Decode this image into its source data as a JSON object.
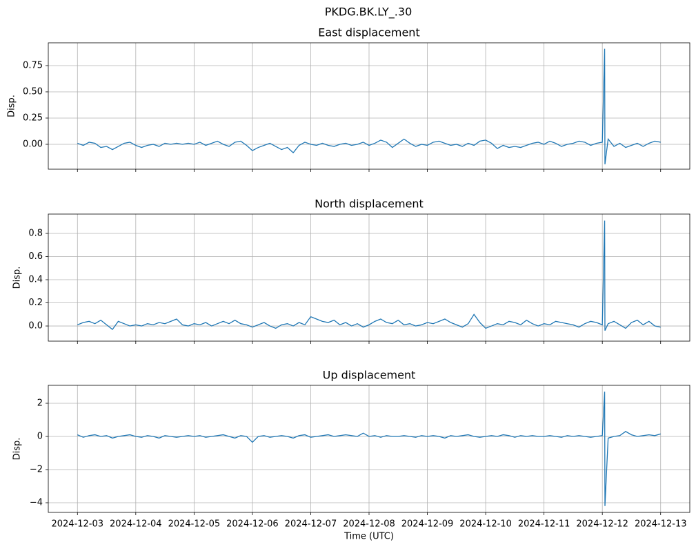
{
  "title": "PKDG.BK.LY_.30",
  "chart_data": [
    {
      "type": "line",
      "title": "East displacement",
      "ylabel": "Disp.",
      "grid": true,
      "xlim": [
        -0.5,
        10.5
      ],
      "ylim": [
        -0.237,
        0.967
      ],
      "yticks": [
        {
          "value": 0,
          "label": "0.00"
        },
        {
          "value": 0.25,
          "label": "0.25"
        },
        {
          "value": 0.5,
          "label": "0.50"
        },
        {
          "value": 0.75,
          "label": "0.75"
        }
      ],
      "x": [
        0,
        0.1,
        0.2,
        0.3,
        0.4,
        0.5,
        0.6,
        0.7,
        0.8,
        0.9,
        1,
        1.1,
        1.2,
        1.3,
        1.4,
        1.5,
        1.6,
        1.7,
        1.8,
        1.9,
        2,
        2.1,
        2.2,
        2.3,
        2.4,
        2.5,
        2.6,
        2.7,
        2.8,
        2.9,
        3,
        3.1,
        3.2,
        3.3,
        3.4,
        3.5,
        3.6,
        3.7,
        3.8,
        3.9,
        4,
        4.1,
        4.2,
        4.3,
        4.4,
        4.5,
        4.6,
        4.7,
        4.8,
        4.9,
        5,
        5.1,
        5.2,
        5.3,
        5.4,
        5.5,
        5.6,
        5.7,
        5.8,
        5.9,
        6,
        6.1,
        6.2,
        6.3,
        6.4,
        6.5,
        6.6,
        6.7,
        6.8,
        6.9,
        7,
        7.1,
        7.2,
        7.3,
        7.4,
        7.5,
        7.6,
        7.7,
        7.8,
        7.9,
        8,
        8.1,
        8.2,
        8.3,
        8.4,
        8.5,
        8.6,
        8.7,
        8.8,
        8.9,
        9,
        9.04,
        9.045,
        9.1,
        9.2,
        9.3,
        9.4,
        9.5,
        9.6,
        9.7,
        9.8,
        9.9,
        10
      ],
      "series": [
        {
          "name": "East",
          "color": "#1f77b4",
          "values": [
            0.01,
            -0.01,
            0.02,
            0.01,
            -0.03,
            -0.02,
            -0.05,
            -0.02,
            0.01,
            0.02,
            -0.01,
            -0.03,
            -0.01,
            0.0,
            -0.02,
            0.01,
            0.0,
            0.01,
            0.0,
            0.01,
            0.0,
            0.02,
            -0.01,
            0.01,
            0.03,
            0.0,
            -0.02,
            0.02,
            0.03,
            -0.01,
            -0.06,
            -0.03,
            -0.01,
            0.01,
            -0.02,
            -0.05,
            -0.03,
            -0.08,
            -0.01,
            0.02,
            0.0,
            -0.01,
            0.01,
            -0.01,
            -0.02,
            0.0,
            0.01,
            -0.01,
            0.0,
            0.02,
            -0.01,
            0.01,
            0.04,
            0.02,
            -0.03,
            0.01,
            0.05,
            0.01,
            -0.02,
            0.0,
            -0.01,
            0.02,
            0.03,
            0.01,
            -0.01,
            0.0,
            -0.02,
            0.01,
            -0.01,
            0.03,
            0.04,
            0.01,
            -0.04,
            -0.01,
            -0.03,
            -0.02,
            -0.03,
            -0.01,
            0.01,
            0.02,
            0.0,
            0.03,
            0.01,
            -0.02,
            0.0,
            0.01,
            0.03,
            0.02,
            -0.01,
            0.01,
            0.02,
            0.91,
            -0.19,
            0.05,
            -0.02,
            0.01,
            -0.03,
            -0.01,
            0.01,
            -0.02,
            0.01,
            0.03,
            0.02
          ]
        }
      ]
    },
    {
      "type": "line",
      "title": "North displacement",
      "ylabel": "Disp.",
      "grid": true,
      "xlim": [
        -0.5,
        10.5
      ],
      "ylim": [
        -0.131,
        0.967
      ],
      "yticks": [
        {
          "value": 0,
          "label": "0.0"
        },
        {
          "value": 0.2,
          "label": "0.2"
        },
        {
          "value": 0.4,
          "label": "0.4"
        },
        {
          "value": 0.6,
          "label": "0.6"
        },
        {
          "value": 0.8,
          "label": "0.8"
        }
      ],
      "x": [
        0,
        0.1,
        0.2,
        0.3,
        0.4,
        0.5,
        0.6,
        0.7,
        0.8,
        0.9,
        1,
        1.1,
        1.2,
        1.3,
        1.4,
        1.5,
        1.6,
        1.7,
        1.8,
        1.9,
        2,
        2.1,
        2.2,
        2.3,
        2.4,
        2.5,
        2.6,
        2.7,
        2.8,
        2.9,
        3,
        3.1,
        3.2,
        3.3,
        3.4,
        3.5,
        3.6,
        3.7,
        3.8,
        3.9,
        4,
        4.1,
        4.2,
        4.3,
        4.4,
        4.5,
        4.6,
        4.7,
        4.8,
        4.9,
        5,
        5.1,
        5.2,
        5.3,
        5.4,
        5.5,
        5.6,
        5.7,
        5.8,
        5.9,
        6,
        6.1,
        6.2,
        6.3,
        6.4,
        6.5,
        6.6,
        6.7,
        6.8,
        6.9,
        7,
        7.1,
        7.2,
        7.3,
        7.4,
        7.5,
        7.6,
        7.7,
        7.8,
        7.9,
        8,
        8.1,
        8.2,
        8.3,
        8.4,
        8.5,
        8.6,
        8.7,
        8.8,
        8.9,
        9,
        9.04,
        9.045,
        9.1,
        9.2,
        9.3,
        9.4,
        9.5,
        9.6,
        9.7,
        9.8,
        9.9,
        10
      ],
      "series": [
        {
          "name": "North",
          "color": "#1f77b4",
          "values": [
            0.01,
            0.03,
            0.04,
            0.02,
            0.05,
            0.01,
            -0.03,
            0.04,
            0.02,
            0.0,
            0.01,
            0.0,
            0.02,
            0.01,
            0.03,
            0.02,
            0.04,
            0.06,
            0.01,
            0.0,
            0.02,
            0.01,
            0.03,
            0.0,
            0.02,
            0.04,
            0.02,
            0.05,
            0.02,
            0.01,
            -0.01,
            0.01,
            0.03,
            0.0,
            -0.02,
            0.01,
            0.02,
            0.0,
            0.03,
            0.01,
            0.08,
            0.06,
            0.04,
            0.03,
            0.05,
            0.01,
            0.03,
            0.0,
            0.02,
            -0.01,
            0.01,
            0.04,
            0.06,
            0.03,
            0.02,
            0.05,
            0.01,
            0.02,
            0.0,
            0.01,
            0.03,
            0.02,
            0.04,
            0.06,
            0.03,
            0.01,
            -0.01,
            0.02,
            0.1,
            0.03,
            -0.02,
            0.0,
            0.02,
            0.01,
            0.04,
            0.03,
            0.01,
            0.05,
            0.02,
            0.0,
            0.02,
            0.01,
            0.04,
            0.03,
            0.02,
            0.01,
            -0.01,
            0.02,
            0.04,
            0.03,
            0.01,
            0.91,
            -0.04,
            0.02,
            0.04,
            0.01,
            -0.02,
            0.03,
            0.05,
            0.01,
            0.04,
            0.0,
            -0.01
          ]
        }
      ]
    },
    {
      "type": "line",
      "title": "Up displacement",
      "ylabel": "Disp.",
      "xlabel": "Time (UTC)",
      "grid": true,
      "xlim": [
        -0.5,
        10.5
      ],
      "ylim": [
        -4.583,
        3.083
      ],
      "xticks": [
        {
          "value": 0,
          "label": "2024-12-03"
        },
        {
          "value": 1,
          "label": "2024-12-04"
        },
        {
          "value": 2,
          "label": "2024-12-05"
        },
        {
          "value": 3,
          "label": "2024-12-06"
        },
        {
          "value": 4,
          "label": "2024-12-07"
        },
        {
          "value": 5,
          "label": "2024-12-08"
        },
        {
          "value": 6,
          "label": "2024-12-09"
        },
        {
          "value": 7,
          "label": "2024-12-10"
        },
        {
          "value": 8,
          "label": "2024-12-11"
        },
        {
          "value": 9,
          "label": "2024-12-12"
        },
        {
          "value": 10,
          "label": "2024-12-13"
        }
      ],
      "yticks": [
        {
          "value": -4,
          "label": "−4"
        },
        {
          "value": -2,
          "label": "−2"
        },
        0,
        2
      ],
      "x": [
        0,
        0.1,
        0.2,
        0.3,
        0.4,
        0.5,
        0.6,
        0.7,
        0.8,
        0.9,
        1,
        1.1,
        1.2,
        1.3,
        1.4,
        1.5,
        1.6,
        1.7,
        1.8,
        1.9,
        2,
        2.1,
        2.2,
        2.3,
        2.4,
        2.5,
        2.6,
        2.7,
        2.8,
        2.9,
        3,
        3.1,
        3.2,
        3.3,
        3.4,
        3.5,
        3.6,
        3.7,
        3.8,
        3.9,
        4,
        4.1,
        4.2,
        4.3,
        4.4,
        4.5,
        4.6,
        4.7,
        4.8,
        4.9,
        5,
        5.1,
        5.2,
        5.3,
        5.4,
        5.5,
        5.6,
        5.7,
        5.8,
        5.9,
        6,
        6.1,
        6.2,
        6.3,
        6.4,
        6.5,
        6.6,
        6.7,
        6.8,
        6.9,
        7,
        7.1,
        7.2,
        7.3,
        7.4,
        7.5,
        7.6,
        7.7,
        7.8,
        7.9,
        8,
        8.1,
        8.2,
        8.3,
        8.4,
        8.5,
        8.6,
        8.7,
        8.8,
        8.9,
        9,
        9.04,
        9.045,
        9.1,
        9.2,
        9.3,
        9.4,
        9.5,
        9.6,
        9.7,
        9.8,
        9.9,
        10
      ],
      "series": [
        {
          "name": "Up",
          "color": "#1f77b4",
          "values": [
            0.1,
            -0.05,
            0.05,
            0.1,
            0.0,
            0.05,
            -0.1,
            0.0,
            0.05,
            0.1,
            0.0,
            -0.05,
            0.05,
            0.0,
            -0.1,
            0.05,
            0.0,
            -0.05,
            0.0,
            0.05,
            0.0,
            0.05,
            -0.05,
            0.0,
            0.05,
            0.1,
            0.0,
            -0.1,
            0.05,
            0.0,
            -0.35,
            0.0,
            0.05,
            -0.05,
            0.0,
            0.05,
            0.0,
            -0.1,
            0.05,
            0.1,
            -0.05,
            0.0,
            0.05,
            0.1,
            0.0,
            0.05,
            0.1,
            0.05,
            0.0,
            0.2,
            0.0,
            0.05,
            -0.05,
            0.05,
            0.0,
            0.0,
            0.05,
            0.0,
            -0.05,
            0.05,
            0.0,
            0.05,
            0.0,
            -0.1,
            0.05,
            0.0,
            0.05,
            0.1,
            0.0,
            -0.05,
            0.0,
            0.05,
            0.0,
            0.1,
            0.05,
            -0.05,
            0.05,
            0.0,
            0.05,
            0.0,
            0.0,
            0.05,
            0.0,
            -0.05,
            0.05,
            0.0,
            0.05,
            0.0,
            -0.05,
            0.0,
            0.05,
            2.7,
            -4.2,
            -0.1,
            0.0,
            0.05,
            0.3,
            0.1,
            0.0,
            0.05,
            0.1,
            0.05,
            0.15
          ]
        }
      ]
    }
  ]
}
